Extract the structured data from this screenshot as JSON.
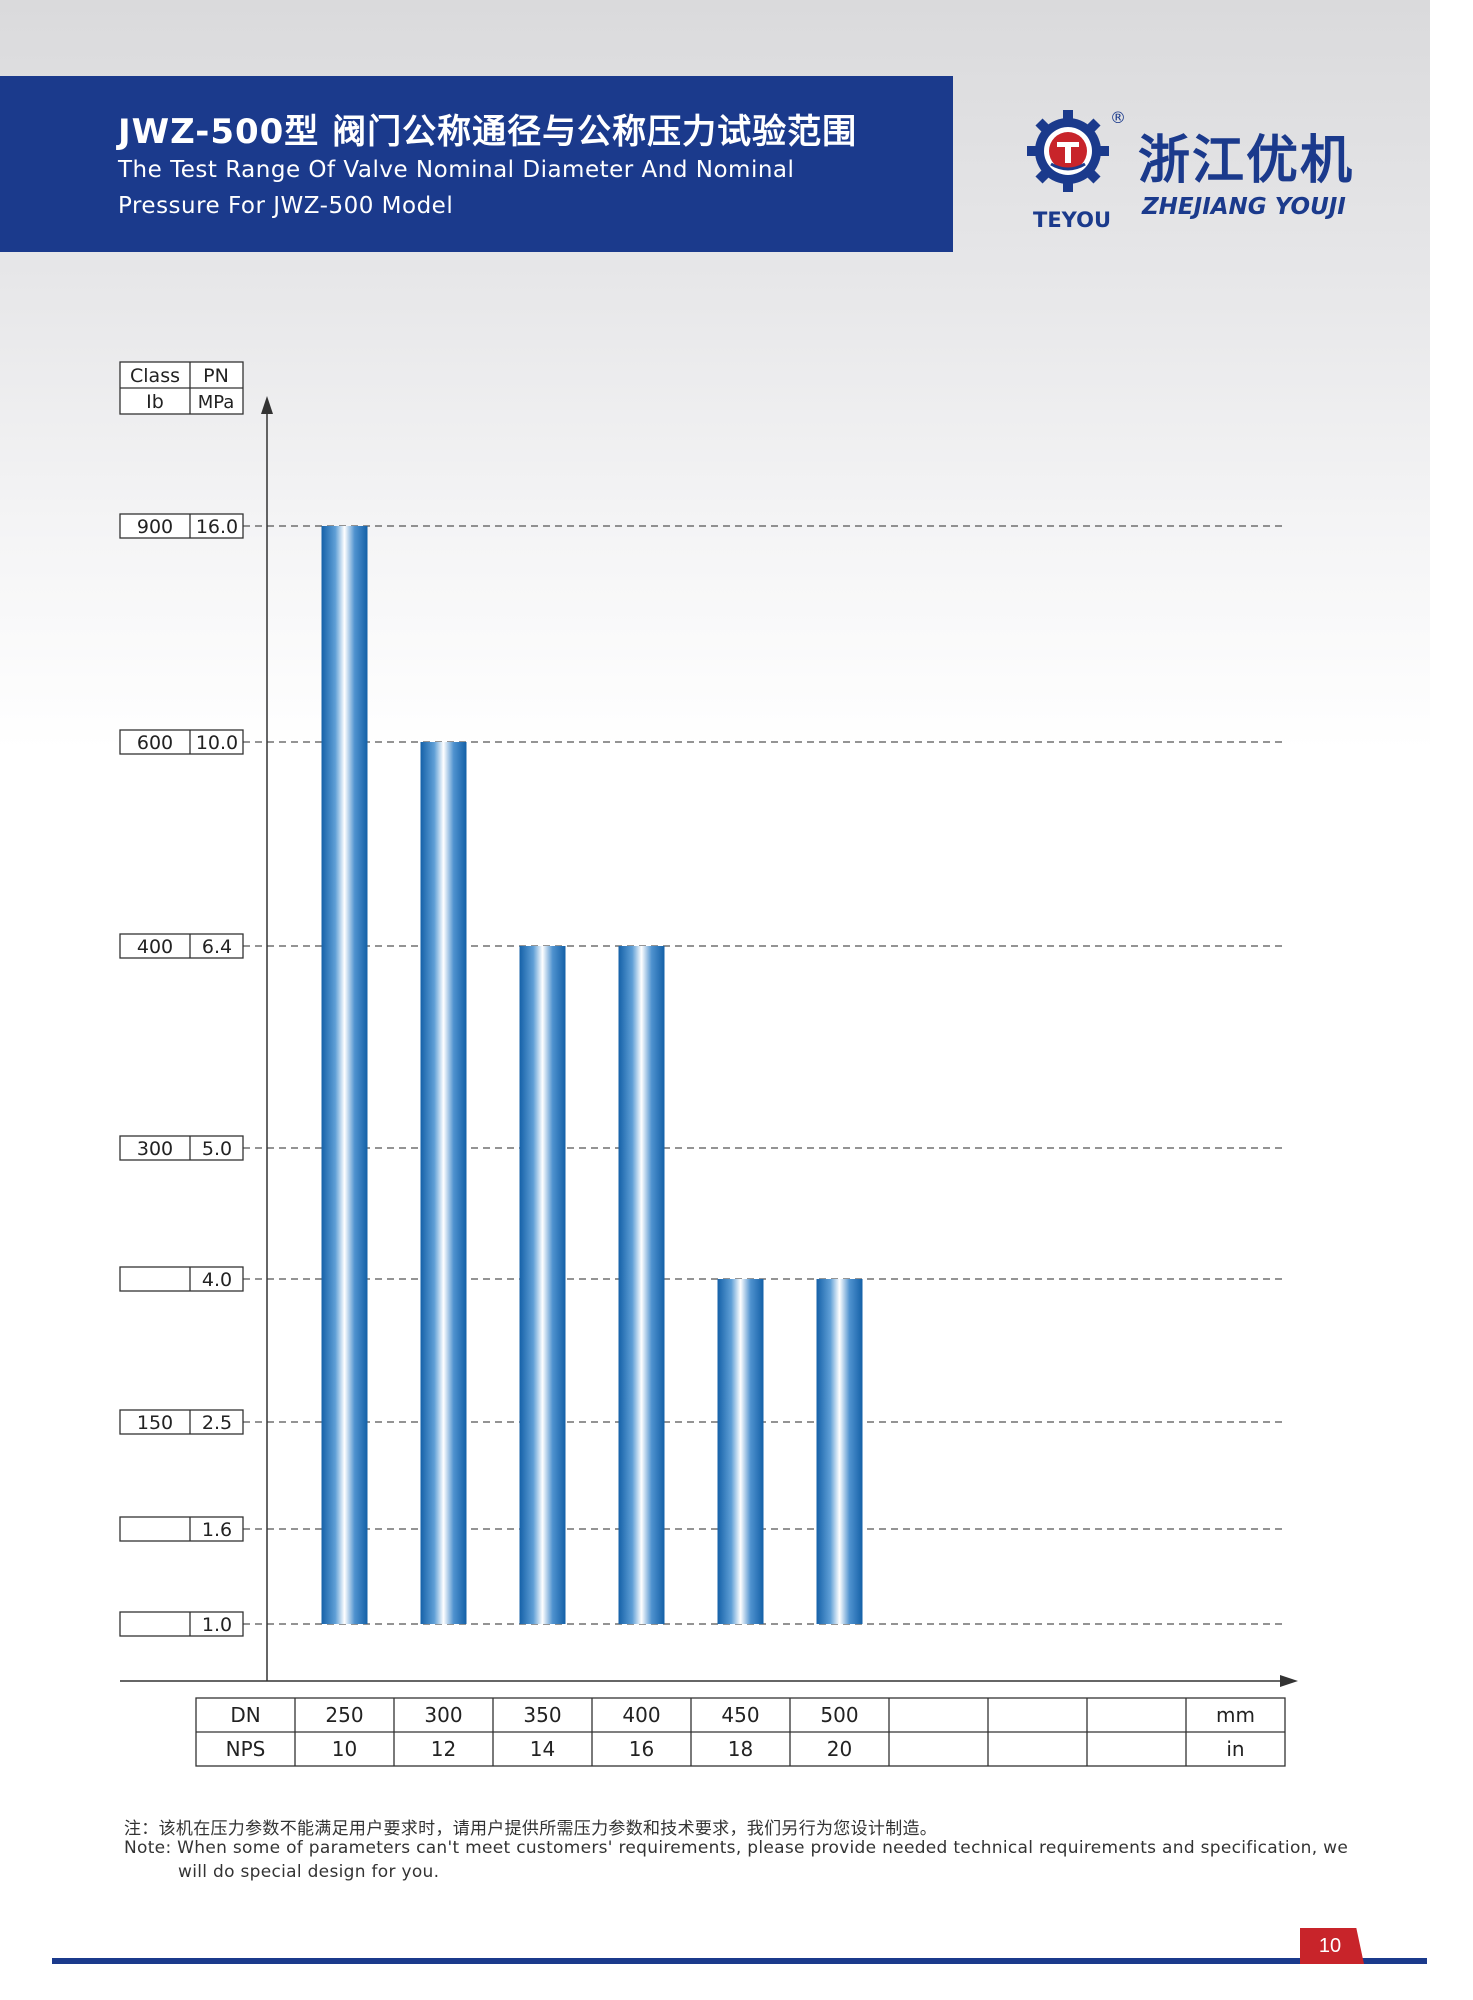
{
  "header": {
    "title": "JWZ-500型 阀门公称通径与公称压力试验范围",
    "subtitle_line1": "The Test Range Of Valve Nominal Diameter And Nominal",
    "subtitle_line2": "Pressure For JWZ-500 Model"
  },
  "brand": {
    "name_cn": "浙江优机",
    "name_en": "ZHEJIANG YOUJI",
    "mark": "TEYOU",
    "registered": "®",
    "color": "#1b3a8c"
  },
  "chart_data": {
    "type": "bar",
    "y_header": {
      "class_label": "Class",
      "class_unit": "Ib",
      "pn_label": "PN",
      "pn_unit": "MPa"
    },
    "y_levels": [
      {
        "pn": "16.0",
        "class": "900"
      },
      {
        "pn": "10.0",
        "class": "600"
      },
      {
        "pn": "6.4",
        "class": "400"
      },
      {
        "pn": "5.0",
        "class": "300"
      },
      {
        "pn": "4.0",
        "class": ""
      },
      {
        "pn": "2.5",
        "class": "150"
      },
      {
        "pn": "1.6",
        "class": ""
      },
      {
        "pn": "1.0",
        "class": ""
      }
    ],
    "bar_base_pn": "1.0",
    "categories": [
      "250",
      "300",
      "350",
      "400",
      "450",
      "500"
    ],
    "values": [
      "16.0",
      "10.0",
      "6.4",
      "6.4",
      "4.0",
      "4.0"
    ],
    "x_table": {
      "dn_label": "DN",
      "nps_label": "NPS",
      "dn": [
        "250",
        "300",
        "350",
        "400",
        "450",
        "500",
        "",
        "",
        ""
      ],
      "nps": [
        "10",
        "12",
        "14",
        "16",
        "18",
        "20",
        "",
        "",
        ""
      ],
      "dn_unit": "mm",
      "nps_unit": "in"
    },
    "grid": "dashed",
    "bar_color": "#1d6fb8"
  },
  "notes": {
    "cn": "注：该机在压力参数不能满足用户要求时，请用户提供所需压力参数和技术要求，我们另行为您设计制造。",
    "en_line1": "Note: When some of parameters can't meet customers' requirements, please provide needed technical requirements and specification, we",
    "en_line2": "will do special design for you."
  },
  "page": {
    "number": "10",
    "accent": "#c8242a"
  }
}
